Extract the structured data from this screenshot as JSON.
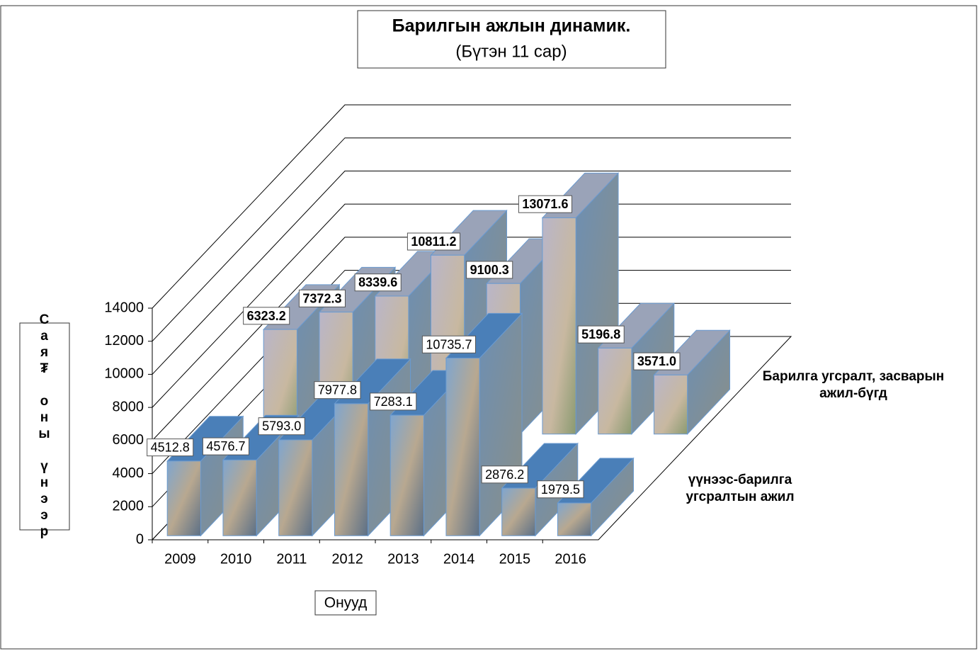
{
  "chart_data": {
    "type": "bar3d",
    "title": "Барилгын ажлын динамик.",
    "subtitle": "(Бүтэн 11 сар)",
    "xlabel": "Онууд",
    "ylabel": "Сая₮ оны үнээр",
    "categories": [
      "2009",
      "2010",
      "2011",
      "2012",
      "2013",
      "2014",
      "2015",
      "2016"
    ],
    "series": [
      {
        "name": "үүнээс-барилга угсралтын ажил",
        "color": "#4a7fb8",
        "values": [
          4512.8,
          4576.7,
          5793.0,
          7977.8,
          7283.1,
          10735.7,
          2876.2,
          1979.5
        ],
        "value_labels": [
          "4512.8",
          "4576.7",
          "5793.0",
          "7977.8",
          "7283.1",
          "10735.7",
          "2876.2",
          "1979.5"
        ]
      },
      {
        "name": "Барилга угсралт, засварын ажил-бүгд",
        "color": "#9aa3b8",
        "values": [
          6323.2,
          7372.3,
          8339.6,
          10811.2,
          9100.3,
          13071.6,
          5196.8,
          3571.0
        ],
        "value_labels": [
          "6323.2",
          "7372.3",
          "8339.6",
          "10811.2",
          "9100.3",
          "13071.6",
          "5196.8",
          "3571.0"
        ]
      }
    ],
    "ylim": [
      0,
      14000
    ],
    "yticks": [
      0,
      2000,
      4000,
      6000,
      8000,
      10000,
      12000,
      14000
    ],
    "grid": true
  }
}
